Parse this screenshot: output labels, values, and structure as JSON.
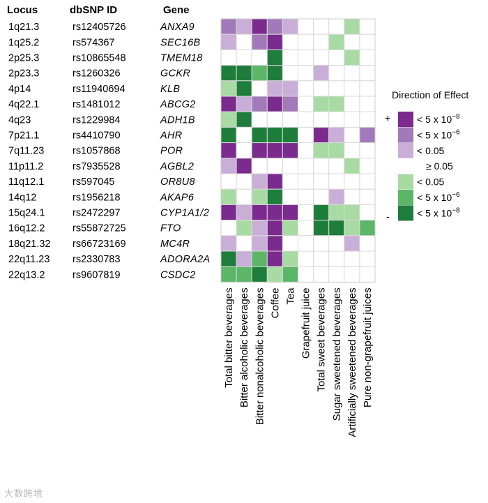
{
  "chart_data": {
    "type": "heatmap",
    "column_headers": {
      "locus": "Locus",
      "snp": "dbSNP ID",
      "gene": "Gene"
    },
    "rows": [
      {
        "locus": "1q21.3",
        "snp": "rs12405726",
        "gene": "ANXA9"
      },
      {
        "locus": "1q25.2",
        "snp": "rs574367",
        "gene": "SEC16B"
      },
      {
        "locus": "2p25.3",
        "snp": "rs10865548",
        "gene": "TMEM18"
      },
      {
        "locus": "2p23.3",
        "snp": "rs1260326",
        "gene": "GCKR"
      },
      {
        "locus": "4p14",
        "snp": "rs11940694",
        "gene": "KLB"
      },
      {
        "locus": "4q22.1",
        "snp": "rs1481012",
        "gene": "ABCG2"
      },
      {
        "locus": "4q23",
        "snp": "rs1229984",
        "gene": "ADH1B"
      },
      {
        "locus": "7p21.1",
        "snp": "rs4410790",
        "gene": "AHR"
      },
      {
        "locus": "7q11.23",
        "snp": "rs1057868",
        "gene": "POR"
      },
      {
        "locus": "11p11.2",
        "snp": "rs7935528",
        "gene": "AGBL2"
      },
      {
        "locus": "11q12.1",
        "snp": "rs597045",
        "gene": "OR8U8"
      },
      {
        "locus": "14q12",
        "snp": "rs1956218",
        "gene": "AKAP6"
      },
      {
        "locus": "15q24.1",
        "snp": "rs2472297",
        "gene": "CYP1A1/2"
      },
      {
        "locus": "16q12.2",
        "snp": "rs55872725",
        "gene": "FTO"
      },
      {
        "locus": "18q21.32",
        "snp": "rs66723169",
        "gene": "MC4R"
      },
      {
        "locus": "22q11.23",
        "snp": "rs2330783",
        "gene": "ADORA2A"
      },
      {
        "locus": "22q13.2",
        "snp": "rs9607819",
        "gene": "CSDC2"
      }
    ],
    "columns": [
      "Total bitter beverages",
      "Bitter alcoholic beverages",
      "Bitter nonalcoholic beverages",
      "Coffee",
      "Tea",
      "Grapefruit juice",
      "Total sweet beverages",
      "Sugar sweetened beverages",
      "Artificially sweetened beverages",
      "Pure non-grapefruit juices"
    ],
    "value_encoding": "+3/+2/+1 = positive effect at <5x10^-8 / <5x10^-6 / <0.05; 0 = >=0.05; -1/-2/-3 = negative effect at <0.05 / <5x10^-6 / <5x10^-8",
    "values": [
      [
        2,
        1,
        3,
        2,
        1,
        0,
        0,
        0,
        -1,
        0
      ],
      [
        1,
        0,
        2,
        3,
        0,
        0,
        0,
        -1,
        0,
        0
      ],
      [
        0,
        0,
        0,
        -3,
        0,
        0,
        0,
        0,
        -1,
        0
      ],
      [
        -3,
        -3,
        -2,
        -3,
        0,
        0,
        1,
        0,
        0,
        0
      ],
      [
        -1,
        -3,
        0,
        1,
        1,
        0,
        0,
        0,
        0,
        0
      ],
      [
        3,
        1,
        2,
        3,
        2,
        0,
        -1,
        -1,
        0,
        0
      ],
      [
        -1,
        -3,
        0,
        0,
        0,
        0,
        0,
        0,
        0,
        0
      ],
      [
        -3,
        0,
        -3,
        -3,
        -3,
        0,
        3,
        1,
        0,
        2
      ],
      [
        3,
        0,
        3,
        3,
        3,
        0,
        -1,
        -1,
        0,
        0
      ],
      [
        1,
        3,
        0,
        0,
        0,
        0,
        0,
        0,
        -1,
        0
      ],
      [
        0,
        0,
        1,
        3,
        0,
        0,
        0,
        0,
        0,
        0
      ],
      [
        -1,
        0,
        -1,
        -3,
        0,
        0,
        0,
        1,
        0,
        0
      ],
      [
        3,
        1,
        3,
        3,
        3,
        0,
        -3,
        -1,
        -1,
        0
      ],
      [
        0,
        -1,
        1,
        3,
        -1,
        0,
        -3,
        -3,
        -1,
        -2
      ],
      [
        1,
        0,
        1,
        3,
        0,
        0,
        0,
        0,
        1,
        0
      ],
      [
        -3,
        1,
        -2,
        3,
        -1,
        0,
        0,
        0,
        0,
        0
      ],
      [
        -2,
        -2,
        -3,
        -1,
        -2,
        0,
        0,
        0,
        0,
        0
      ]
    ],
    "legend": {
      "title": "Direction of Effect",
      "plus": "+",
      "minus": "-",
      "position": "right",
      "items": [
        {
          "level": 3,
          "base": "< 5 x 10",
          "exp": "−8",
          "color": "#7b2a8e"
        },
        {
          "level": 2,
          "base": "< 5 x 10",
          "exp": "−6",
          "color": "#a27ab9"
        },
        {
          "level": 1,
          "base": "< 0.05",
          "exp": "",
          "color": "#c9aed8"
        },
        {
          "level": 0,
          "base": "≥ 0.05",
          "exp": "",
          "color": "#ffffff"
        },
        {
          "level": -1,
          "base": "< 0.05",
          "exp": "",
          "color": "#a8dba3"
        },
        {
          "level": -2,
          "base": "< 5 x 10",
          "exp": "−6",
          "color": "#5bb667"
        },
        {
          "level": -3,
          "base": "< 5 x 10",
          "exp": "−8",
          "color": "#1e7d3b"
        }
      ]
    }
  },
  "watermark": "大数跨境"
}
